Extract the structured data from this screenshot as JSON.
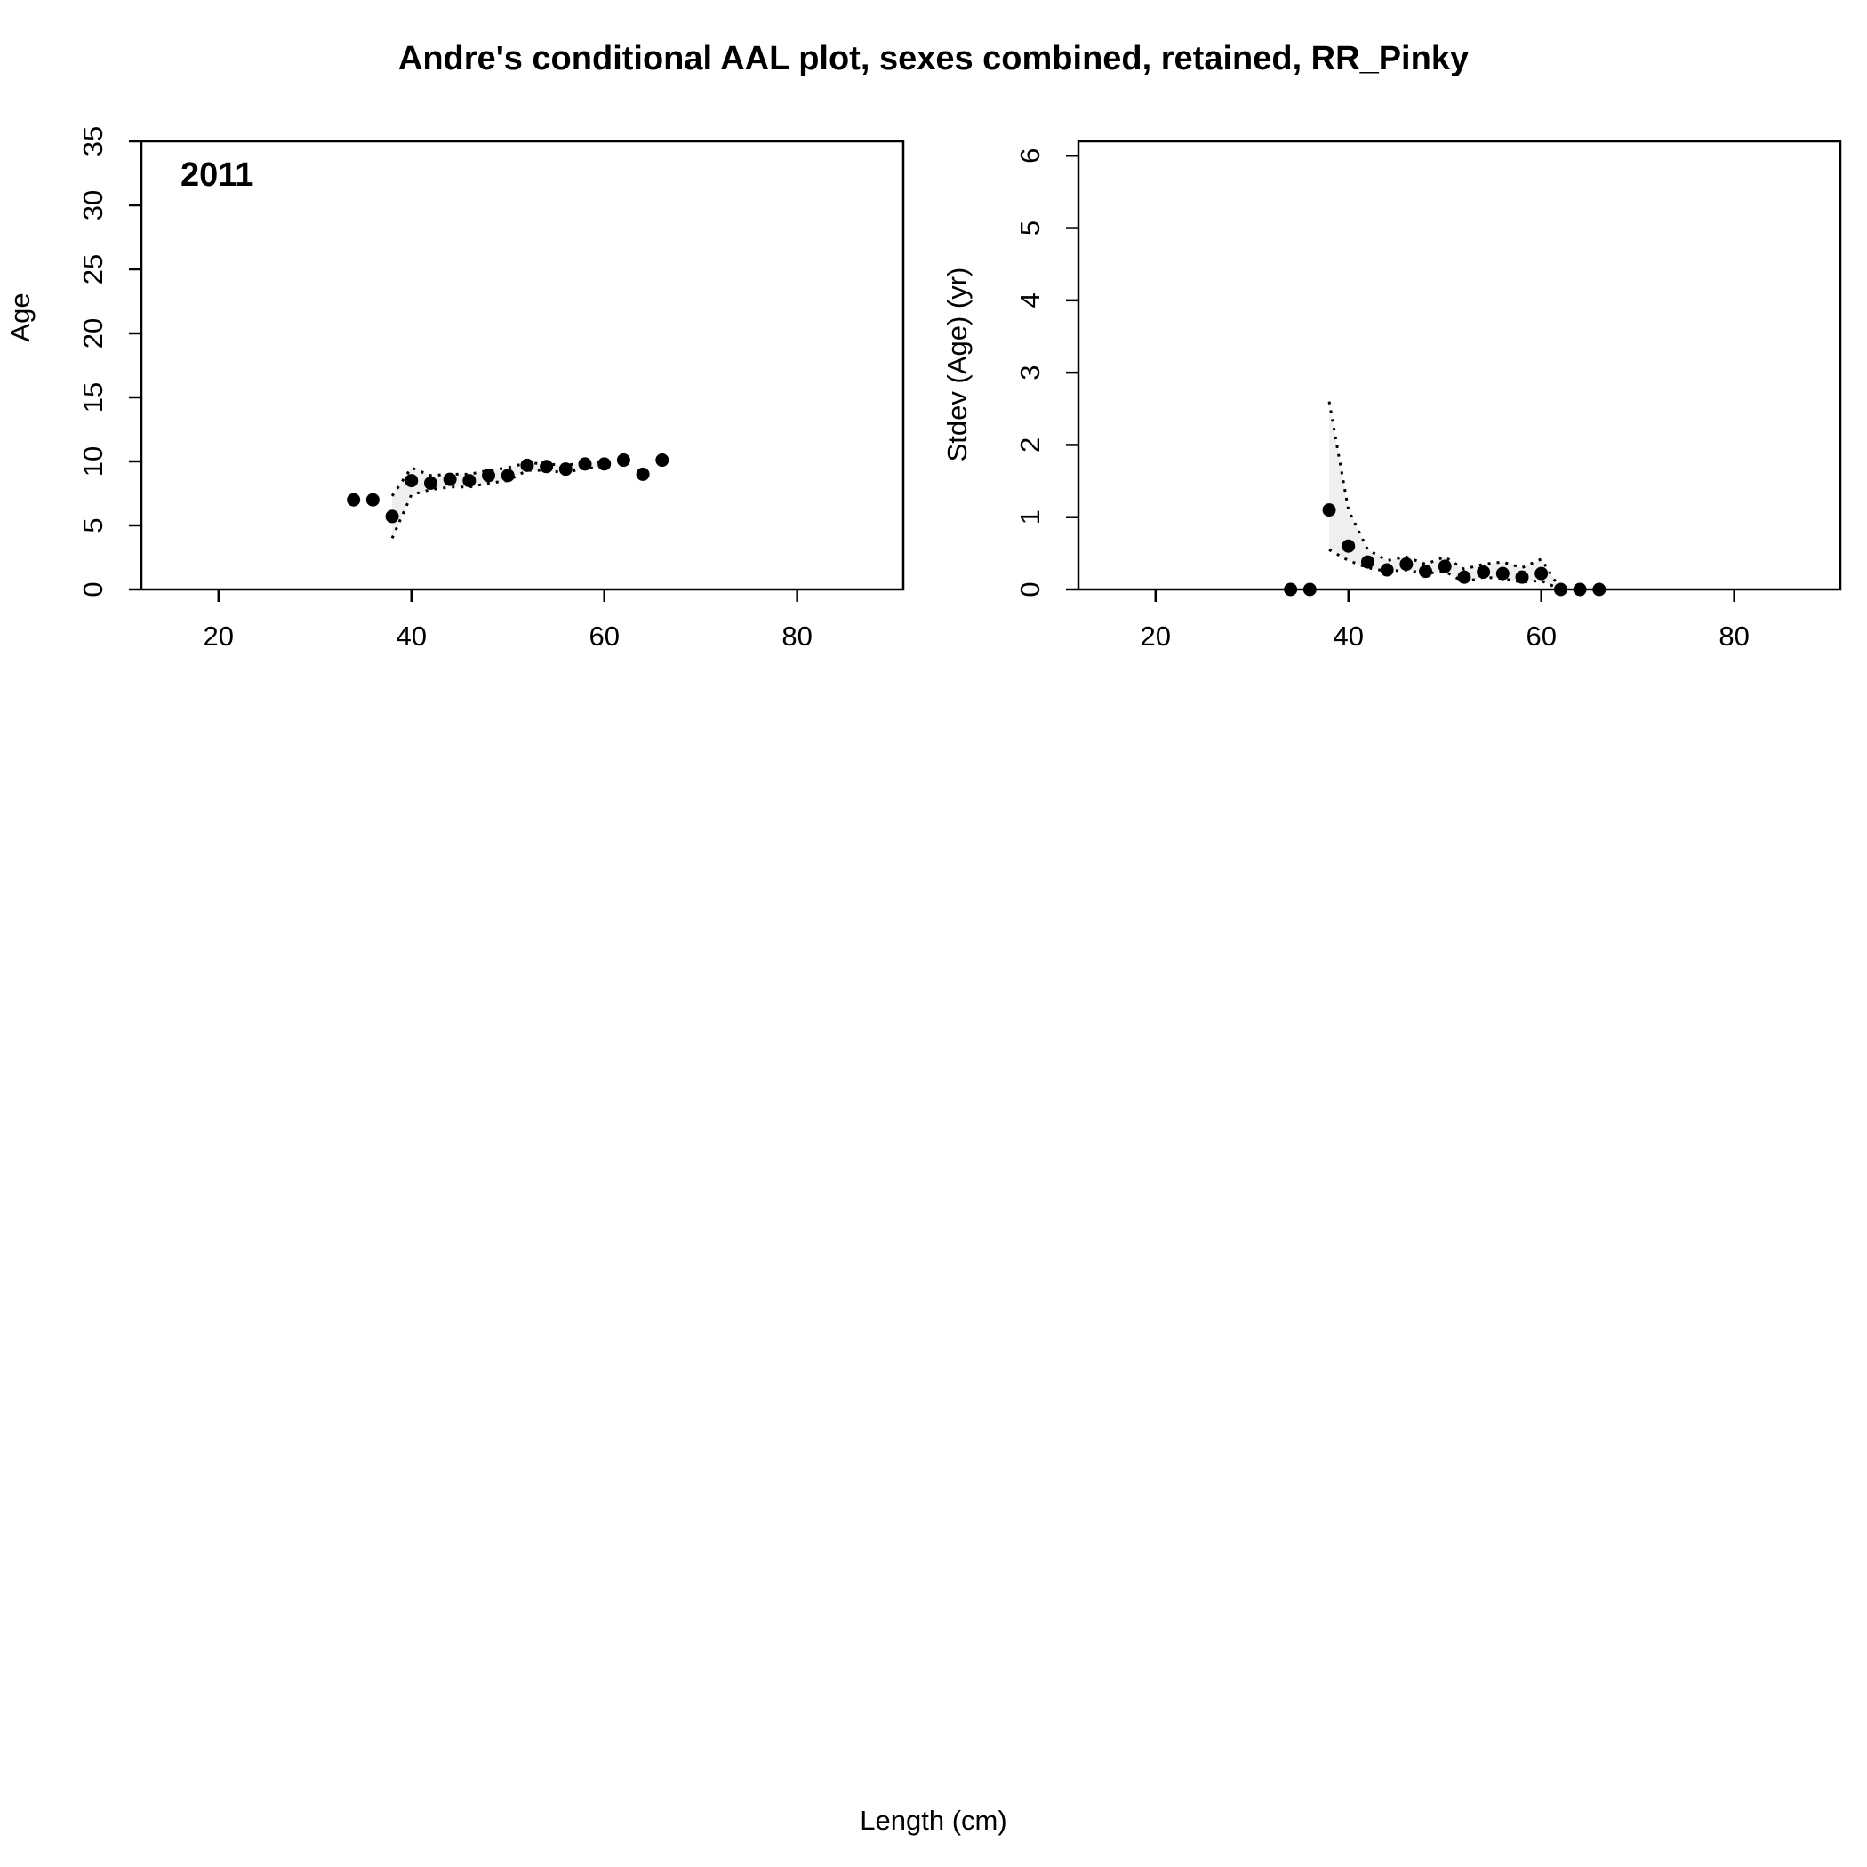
{
  "title": "Andre's conditional AAL plot, sexes combined, retained, RR_Pinky",
  "x_label": "Length (cm)",
  "chart_data": [
    {
      "type": "scatter",
      "panel": "mean age",
      "year_label": "2011",
      "ylabel": "Age",
      "xlim": [
        12,
        91
      ],
      "ylim": [
        0,
        35
      ],
      "x_ticks": [
        20,
        40,
        60,
        80
      ],
      "y_ticks": [
        0,
        5,
        10,
        15,
        20,
        25,
        30,
        35
      ],
      "grid": false,
      "x": [
        34,
        36,
        38,
        40,
        42,
        44,
        46,
        48,
        50,
        52,
        54,
        56,
        58,
        60,
        62,
        64,
        66
      ],
      "y": [
        7.0,
        7.0,
        5.7,
        8.5,
        8.3,
        8.6,
        8.5,
        8.9,
        8.9,
        9.7,
        9.6,
        9.4,
        9.8,
        9.8,
        10.1,
        9.0,
        10.1
      ],
      "band": {
        "x": [
          38,
          40,
          42,
          44,
          46,
          48,
          50,
          52,
          54,
          56,
          58,
          60
        ],
        "upper": [
          7.3,
          9.5,
          8.9,
          9.0,
          9.0,
          9.3,
          9.5,
          9.9,
          9.8,
          9.7,
          9.9,
          10.0
        ],
        "lower": [
          4.0,
          7.4,
          7.8,
          8.0,
          8.0,
          8.3,
          8.5,
          9.3,
          9.3,
          9.1,
          9.5,
          9.5
        ]
      }
    },
    {
      "type": "scatter",
      "panel": "stdev age",
      "ylabel": "Stdev (Age) (yr)",
      "xlim": [
        12,
        91
      ],
      "ylim": [
        0,
        6.2
      ],
      "x_ticks": [
        20,
        40,
        60,
        80
      ],
      "y_ticks": [
        0,
        1,
        2,
        3,
        4,
        5,
        6
      ],
      "grid": false,
      "x": [
        34,
        36,
        38,
        40,
        42,
        44,
        46,
        48,
        50,
        52,
        54,
        56,
        58,
        60,
        62,
        64,
        66
      ],
      "y": [
        0.0,
        0.0,
        1.1,
        0.6,
        0.38,
        0.27,
        0.35,
        0.25,
        0.32,
        0.17,
        0.24,
        0.22,
        0.17,
        0.22,
        0.0,
        0.0,
        0.0
      ],
      "band": {
        "x": [
          38,
          40,
          42,
          44,
          46,
          48,
          50,
          52,
          54,
          56,
          58,
          60,
          62
        ],
        "upper": [
          2.6,
          1.1,
          0.55,
          0.4,
          0.45,
          0.35,
          0.45,
          0.28,
          0.35,
          0.38,
          0.3,
          0.42,
          0.0
        ],
        "lower": [
          0.55,
          0.4,
          0.3,
          0.25,
          0.27,
          0.22,
          0.25,
          0.1,
          0.17,
          0.15,
          0.1,
          0.12,
          0.0
        ]
      }
    }
  ]
}
